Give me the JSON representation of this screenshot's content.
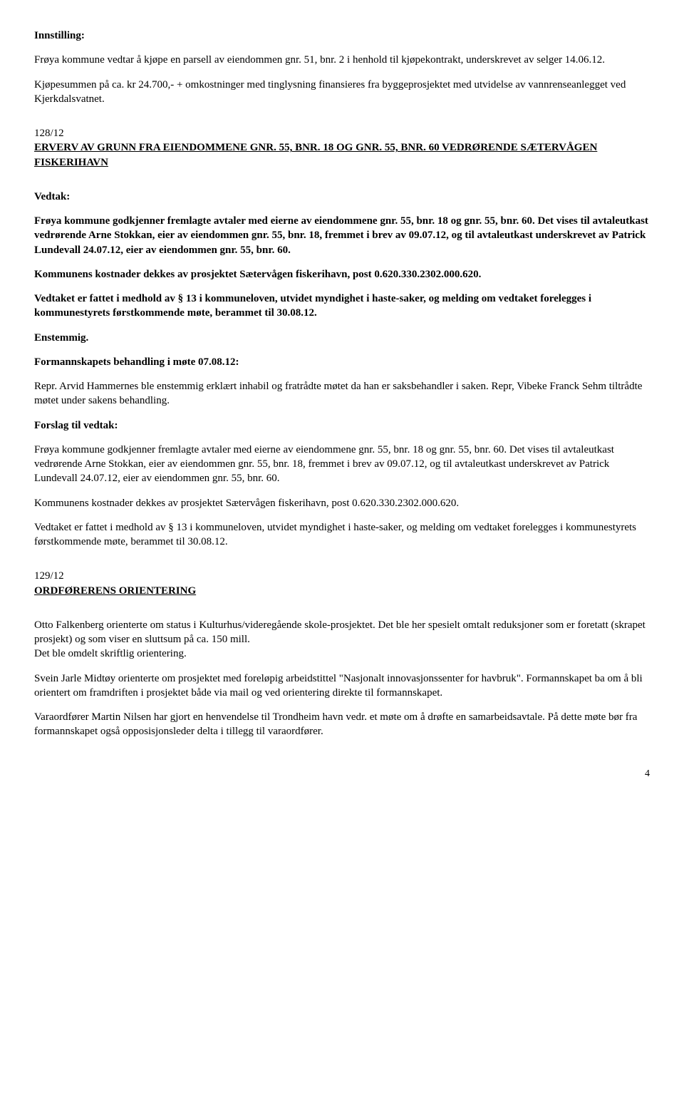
{
  "innstilling_label": "Innstilling:",
  "innstilling_p1": "Frøya kommune vedtar å kjøpe en parsell av eiendommen gnr. 51, bnr. 2 i henhold til kjøpekontrakt, underskrevet av selger 14.06.12.",
  "innstilling_p2": "Kjøpesummen på ca. kr 24.700,- + omkostninger med tinglysning finansieres fra byggeprosjektet med utvidelse av vannrenseanlegget ved Kjerkdalsvatnet.",
  "case128_number": "128/12",
  "case128_title": "ERVERV AV GRUNN FRA EIENDOMMENE GNR. 55, BNR. 18 OG GNR. 55, BNR. 60 VEDRØRENDE SÆTERVÅGEN FISKERIHAVN",
  "vedtak_label": "Vedtak:",
  "vedtak_p1": "Frøya kommune godkjenner fremlagte avtaler med eierne av eiendommene gnr. 55, bnr. 18 og gnr. 55, bnr. 60. Det vises til avtaleutkast vedrørende Arne Stokkan, eier av eiendommen gnr. 55, bnr. 18, fremmet i brev av 09.07.12, og til avtaleutkast underskrevet av Patrick Lundevall 24.07.12, eier av eiendommen gnr. 55, bnr. 60.",
  "vedtak_p2": "Kommunens kostnader dekkes av prosjektet Sætervågen fiskerihavn, post 0.620.330.2302.000.620.",
  "vedtak_p3": "Vedtaket er fattet i medhold av § 13 i kommuneloven, utvidet myndighet i haste-saker, og melding om vedtaket forelegges i kommunestyrets førstkommende møte, berammet til 30.08.12.",
  "vedtak_p4": "Enstemmig.",
  "behandling_label": "Formannskapets behandling i møte 07.08.12:",
  "behandling_p1": "Repr. Arvid Hammernes ble enstemmig erklært inhabil og fratrådte møtet da han er saksbehandler i saken. Repr, Vibeke Franck Sehm tiltrådte møtet under sakens behandling.",
  "forslag_label": "Forslag til vedtak:",
  "forslag_p1": "Frøya kommune godkjenner fremlagte avtaler med eierne av eiendommene gnr. 55, bnr. 18 og gnr. 55, bnr. 60. Det vises til avtaleutkast vedrørende Arne Stokkan, eier av eiendommen gnr. 55, bnr. 18, fremmet i brev av 09.07.12, og til avtaleutkast underskrevet av Patrick Lundevall 24.07.12, eier av eiendommen gnr. 55, bnr. 60.",
  "forslag_p2": "Kommunens kostnader dekkes av prosjektet Sætervågen fiskerihavn, post 0.620.330.2302.000.620.",
  "forslag_p3": "Vedtaket er fattet i medhold av § 13 i kommuneloven, utvidet myndighet i haste-saker, og melding om vedtaket forelegges i kommunestyrets førstkommende møte, berammet til 30.08.12.",
  "case129_number": "129/12",
  "case129_title": "ORDFØRERENS ORIENTERING",
  "orient_p1": "Otto Falkenberg orienterte om status i Kulturhus/videregående skole-prosjektet.  Det ble her spesielt omtalt reduksjoner som er foretatt (skrapet prosjekt) og som viser en sluttsum på ca. 150 mill.",
  "orient_p2": "Det ble omdelt skriftlig orientering.",
  "orient_p3": "Svein Jarle Midtøy orienterte om prosjektet med foreløpig arbeidstittel \"Nasjonalt innovasjonssenter for havbruk\". Formannskapet ba om å bli orientert om framdriften i prosjektet både via mail og ved orientering direkte til formannskapet.",
  "orient_p4": "Varaordfører Martin Nilsen har gjort en henvendelse til Trondheim havn vedr. et møte om å drøfte en samarbeidsavtale.  På dette møte bør fra formannskapet også opposisjonsleder delta i tillegg til varaordfører.",
  "page_number": "4"
}
